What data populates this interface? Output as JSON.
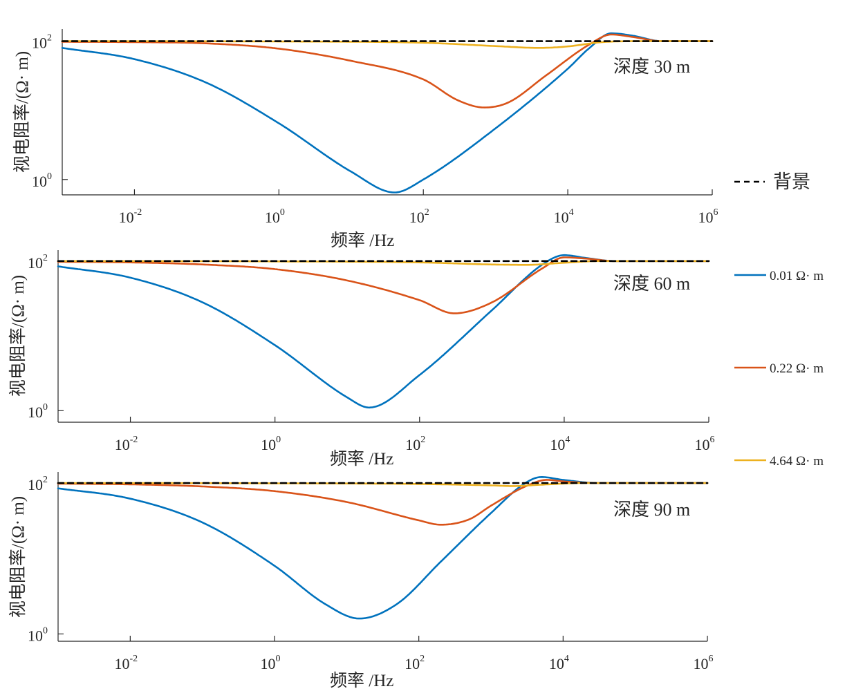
{
  "colors": {
    "background": "#000000",
    "series": [
      "#0072BD",
      "#D95319",
      "#EDB120"
    ],
    "axis": "#262626"
  },
  "legend": {
    "background_label": "背景",
    "entries": [
      "0.01 Ω· m",
      "0.22 Ω· m",
      "4.64 Ω· m"
    ]
  },
  "chart_data": [
    {
      "type": "line",
      "x_scale": "log",
      "y_scale": "log",
      "xlim": [
        0.001,
        1000000
      ],
      "ylim": [
        0.6,
        150
      ],
      "xlabel": "频率 /Hz",
      "ylabel": "视电阻率/(Ω· m)",
      "annotation": "深度 30 m",
      "x_ticks": [
        {
          "base": "10",
          "exp": "-2",
          "value": 0.01
        },
        {
          "base": "10",
          "exp": "0",
          "value": 1
        },
        {
          "base": "10",
          "exp": "2",
          "value": 100
        },
        {
          "base": "10",
          "exp": "4",
          "value": 10000
        },
        {
          "base": "10",
          "exp": "6",
          "value": 1000000
        }
      ],
      "y_ticks": [
        {
          "base": "10",
          "exp": "0",
          "value": 1
        },
        {
          "base": "10",
          "exp": "2",
          "value": 100
        }
      ],
      "series": [
        {
          "name": "背景",
          "style": "dashed",
          "x": [
            0.001,
            1000000
          ],
          "y": [
            100,
            100
          ]
        },
        {
          "name": "0.01 Ω· m",
          "x": [
            0.001,
            0.01,
            0.1,
            1,
            10,
            40,
            100,
            1000,
            10000,
            20000,
            40000,
            80000,
            200000,
            1000000
          ],
          "y": [
            80,
            55,
            25,
            6.5,
            1.3,
            0.65,
            1.0,
            5.5,
            40,
            80,
            130,
            120,
            100,
            100
          ]
        },
        {
          "name": "0.22 Ω· m",
          "x": [
            0.001,
            0.01,
            0.1,
            1,
            10,
            100,
            300,
            700,
            1500,
            5000,
            20000,
            40000,
            80000,
            200000,
            1000000
          ],
          "y": [
            98,
            97,
            93,
            78,
            52,
            28,
            14,
            11,
            13,
            32,
            90,
            125,
            115,
            100,
            100
          ]
        },
        {
          "name": "4.64 Ω· m",
          "x": [
            0.001,
            1,
            100,
            1000,
            4000,
            10000,
            30000,
            100000,
            1000000
          ],
          "y": [
            100,
            99,
            95,
            85,
            80,
            84,
            97,
            100,
            100
          ]
        }
      ]
    },
    {
      "type": "line",
      "x_scale": "log",
      "y_scale": "log",
      "xlim": [
        0.001,
        1000000
      ],
      "ylim": [
        0.7,
        140
      ],
      "xlabel": "频率  /Hz",
      "ylabel": "视电阻率/(Ω· m)",
      "annotation": "深度 60 m",
      "x_ticks": [
        {
          "base": "10",
          "exp": "-2",
          "value": 0.01
        },
        {
          "base": "10",
          "exp": "0",
          "value": 1
        },
        {
          "base": "10",
          "exp": "2",
          "value": 100
        },
        {
          "base": "10",
          "exp": "4",
          "value": 10000
        },
        {
          "base": "10",
          "exp": "6",
          "value": 1000000
        }
      ],
      "y_ticks": [
        {
          "base": "10",
          "exp": "0",
          "value": 1
        },
        {
          "base": "10",
          "exp": "2",
          "value": 100
        }
      ],
      "series": [
        {
          "name": "背景",
          "style": "dashed",
          "x": [
            0.001,
            1000000
          ],
          "y": [
            100,
            100
          ]
        },
        {
          "name": "0.01 Ω· m",
          "x": [
            0.001,
            0.01,
            0.1,
            1,
            10,
            20,
            100,
            1000,
            5000,
            10000,
            20000,
            50000,
            1000000
          ],
          "y": [
            85,
            60,
            28,
            7.5,
            1.5,
            1.1,
            3.0,
            22,
            90,
            120,
            110,
            100,
            100
          ]
        },
        {
          "name": "0.22 Ω· m",
          "x": [
            0.001,
            0.01,
            0.1,
            1,
            10,
            100,
            300,
            1000,
            5000,
            10000,
            20000,
            50000,
            1000000
          ],
          "y": [
            98,
            96,
            90,
            78,
            55,
            30,
            20,
            28,
            80,
            112,
            108,
            100,
            100
          ]
        },
        {
          "name": "4.64 Ω· m",
          "x": [
            0.001,
            1,
            100,
            1000,
            3000,
            10000,
            30000,
            1000000
          ],
          "y": [
            100,
            99,
            96,
            90,
            89,
            95,
            100,
            100
          ]
        }
      ]
    },
    {
      "type": "line",
      "x_scale": "log",
      "y_scale": "log",
      "xlim": [
        0.001,
        1000000
      ],
      "ylim": [
        0.8,
        140
      ],
      "xlabel": "频率  /Hz",
      "ylabel": "视电阻率/(Ω· m)",
      "annotation": "深度 90 m",
      "x_ticks": [
        {
          "base": "10",
          "exp": "-2",
          "value": 0.01
        },
        {
          "base": "10",
          "exp": "0",
          "value": 1
        },
        {
          "base": "10",
          "exp": "2",
          "value": 100
        },
        {
          "base": "10",
          "exp": "4",
          "value": 10000
        },
        {
          "base": "10",
          "exp": "6",
          "value": 1000000
        }
      ],
      "y_ticks": [
        {
          "base": "10",
          "exp": "0",
          "value": 1
        },
        {
          "base": "10",
          "exp": "2",
          "value": 100
        }
      ],
      "series": [
        {
          "name": "背景",
          "style": "dashed",
          "x": [
            0.001,
            1000000
          ],
          "y": [
            100,
            100
          ]
        },
        {
          "name": "0.01 Ω· m",
          "x": [
            0.001,
            0.01,
            0.1,
            1,
            5,
            15,
            50,
            200,
            1000,
            3000,
            5000,
            10000,
            30000,
            1000000
          ],
          "y": [
            85,
            62,
            30,
            8,
            2.5,
            1.6,
            2.5,
            9,
            40,
            100,
            120,
            110,
            100,
            100
          ]
        },
        {
          "name": "0.22 Ω· m",
          "x": [
            0.001,
            0.01,
            0.1,
            1,
            10,
            100,
            200,
            500,
            1000,
            3000,
            6000,
            10000,
            30000,
            1000000
          ],
          "y": [
            98,
            96,
            90,
            78,
            56,
            32,
            28,
            33,
            50,
            90,
            110,
            105,
            100,
            100
          ]
        },
        {
          "name": "4.64 Ω· m",
          "x": [
            0.001,
            1,
            100,
            1000,
            2000,
            5000,
            20000,
            1000000
          ],
          "y": [
            100,
            99,
            97,
            93,
            91,
            95,
            100,
            100
          ]
        }
      ]
    }
  ]
}
